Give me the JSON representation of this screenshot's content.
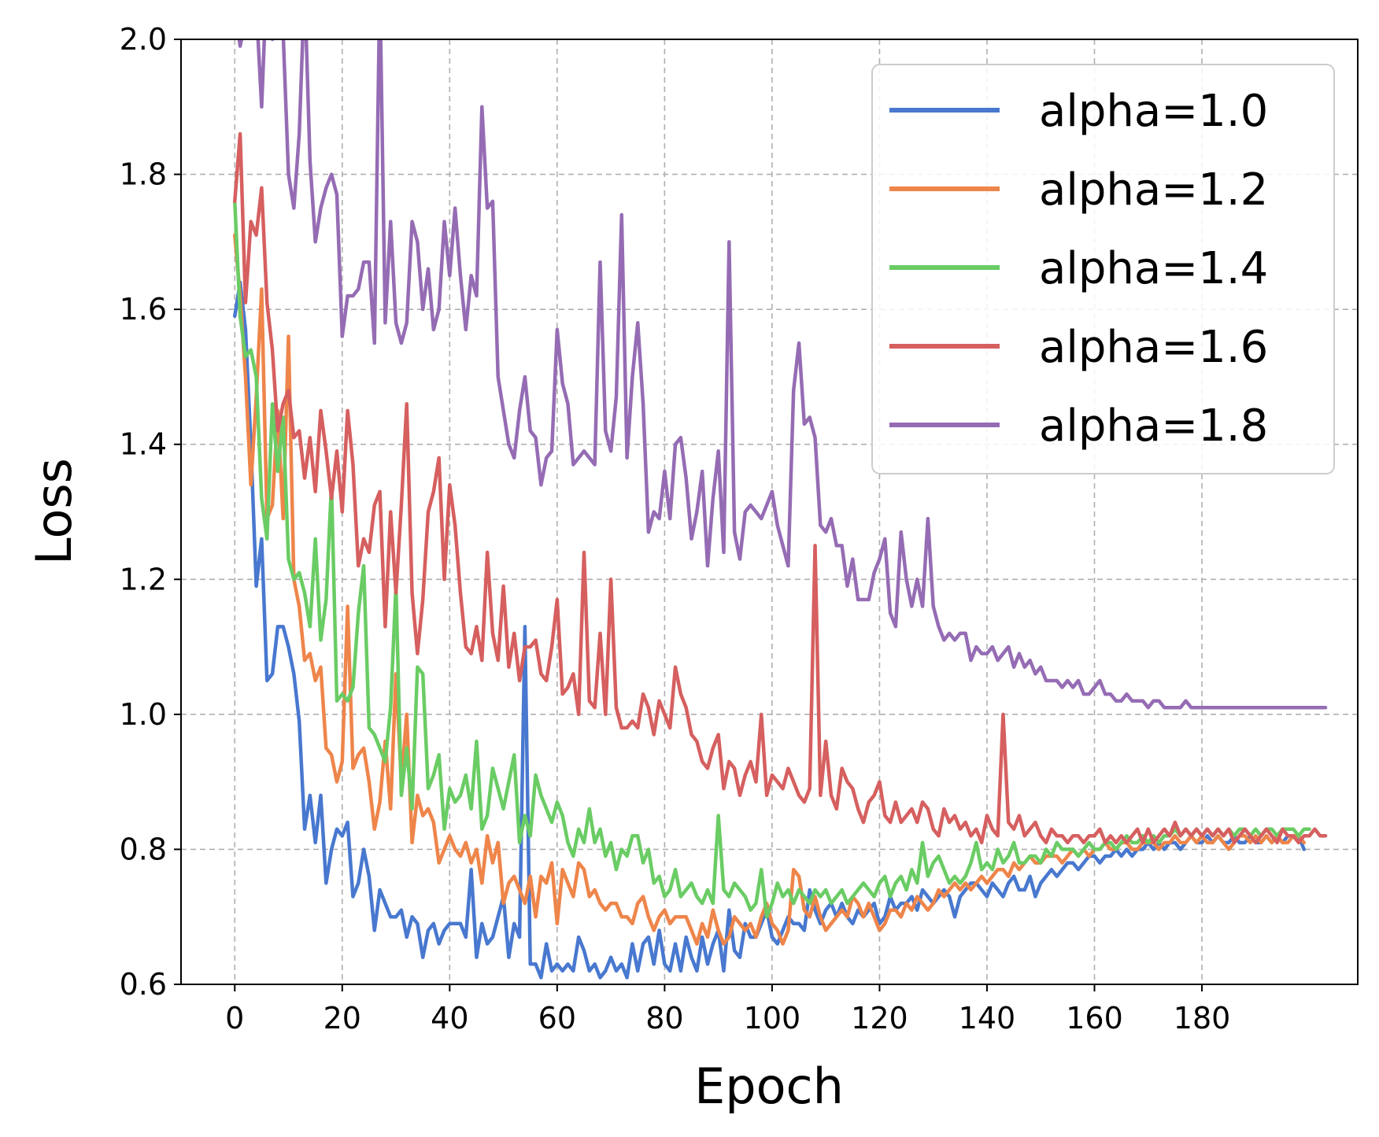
{
  "chart_data": {
    "type": "line",
    "xlabel": "Epoch",
    "ylabel": "Loss",
    "xlim": [
      -10,
      209
    ],
    "ylim": [
      0.6,
      2.0
    ],
    "x_ticks": [
      0,
      20,
      40,
      60,
      80,
      100,
      120,
      140,
      160,
      180
    ],
    "y_ticks": [
      0.6,
      0.8,
      1.0,
      1.2,
      1.4,
      1.6,
      1.8,
      2.0
    ],
    "x_tick_labels": [
      "0",
      "20",
      "40",
      "60",
      "80",
      "100",
      "120",
      "140",
      "160",
      "180"
    ],
    "y_tick_labels": [
      "0.6",
      "0.8",
      "1.0",
      "1.2",
      "1.4",
      "1.6",
      "1.8",
      "2.0"
    ],
    "grid": true,
    "legend_position": "top-right",
    "x_start": 0,
    "x_step": 1,
    "series": [
      {
        "name": "alpha=1.0",
        "color": "#4878cf",
        "values": [
          1.59,
          1.64,
          1.57,
          1.4,
          1.19,
          1.26,
          1.05,
          1.06,
          1.13,
          1.13,
          1.1,
          1.06,
          0.99,
          0.83,
          0.88,
          0.81,
          0.88,
          0.75,
          0.8,
          0.83,
          0.82,
          0.84,
          0.73,
          0.75,
          0.8,
          0.76,
          0.68,
          0.74,
          0.72,
          0.7,
          0.7,
          0.71,
          0.67,
          0.7,
          0.69,
          0.64,
          0.68,
          0.69,
          0.66,
          0.68,
          0.69,
          0.69,
          0.69,
          0.67,
          0.77,
          0.64,
          0.69,
          0.66,
          0.67,
          0.7,
          0.73,
          0.64,
          0.69,
          0.67,
          1.13,
          0.63,
          0.63,
          0.61,
          0.66,
          0.62,
          0.63,
          0.62,
          0.63,
          0.62,
          0.67,
          0.65,
          0.62,
          0.63,
          0.61,
          0.62,
          0.64,
          0.62,
          0.63,
          0.61,
          0.66,
          0.62,
          0.66,
          0.67,
          0.63,
          0.68,
          0.63,
          0.62,
          0.66,
          0.62,
          0.67,
          0.64,
          0.62,
          0.67,
          0.63,
          0.66,
          0.68,
          0.62,
          0.71,
          0.65,
          0.64,
          0.69,
          0.67,
          0.67,
          0.69,
          0.71,
          0.67,
          0.66,
          0.68,
          0.7,
          0.69,
          0.69,
          0.68,
          0.74,
          0.71,
          0.69,
          0.71,
          0.72,
          0.7,
          0.72,
          0.7,
          0.69,
          0.71,
          0.7,
          0.71,
          0.72,
          0.69,
          0.7,
          0.73,
          0.71,
          0.72,
          0.72,
          0.73,
          0.71,
          0.74,
          0.73,
          0.72,
          0.73,
          0.74,
          0.73,
          0.7,
          0.73,
          0.74,
          0.75,
          0.75,
          0.74,
          0.73,
          0.75,
          0.74,
          0.73,
          0.75,
          0.76,
          0.74,
          0.74,
          0.76,
          0.73,
          0.75,
          0.76,
          0.77,
          0.76,
          0.77,
          0.78,
          0.78,
          0.77,
          0.78,
          0.79,
          0.79,
          0.78,
          0.79,
          0.79,
          0.8,
          0.79,
          0.8,
          0.79,
          0.8,
          0.8,
          0.81,
          0.8,
          0.81,
          0.8,
          0.81,
          0.81,
          0.8,
          0.81,
          0.82,
          0.81,
          0.81,
          0.82,
          0.81,
          0.82,
          0.81,
          0.81,
          0.82,
          0.81,
          0.81,
          0.82,
          0.81,
          0.81,
          0.82,
          0.81,
          0.82,
          0.81,
          0.82,
          0.82,
          0.82,
          0.8
        ]
      },
      {
        "name": "alpha=1.2",
        "color": "#ee854a",
        "values": [
          1.71,
          1.62,
          1.5,
          1.34,
          1.47,
          1.63,
          1.29,
          1.31,
          1.45,
          1.29,
          1.56,
          1.2,
          1.16,
          1.08,
          1.09,
          1.05,
          1.07,
          0.95,
          0.94,
          0.9,
          0.93,
          1.16,
          0.92,
          0.94,
          0.95,
          0.9,
          0.83,
          0.87,
          0.96,
          0.86,
          1.06,
          0.9,
          1.0,
          0.81,
          0.88,
          0.85,
          0.86,
          0.84,
          0.78,
          0.8,
          0.82,
          0.8,
          0.79,
          0.81,
          0.78,
          0.8,
          0.75,
          0.82,
          0.78,
          0.81,
          0.72,
          0.75,
          0.76,
          0.74,
          0.72,
          0.76,
          0.7,
          0.76,
          0.75,
          0.78,
          0.69,
          0.77,
          0.75,
          0.73,
          0.78,
          0.77,
          0.73,
          0.74,
          0.72,
          0.71,
          0.72,
          0.72,
          0.7,
          0.7,
          0.69,
          0.72,
          0.73,
          0.7,
          0.68,
          0.7,
          0.71,
          0.69,
          0.7,
          0.7,
          0.7,
          0.68,
          0.66,
          0.69,
          0.67,
          0.71,
          0.68,
          0.66,
          0.67,
          0.7,
          0.69,
          0.68,
          0.69,
          0.67,
          0.7,
          0.72,
          0.69,
          0.68,
          0.66,
          0.68,
          0.77,
          0.76,
          0.71,
          0.7,
          0.73,
          0.7,
          0.68,
          0.69,
          0.7,
          0.71,
          0.7,
          0.73,
          0.72,
          0.7,
          0.72,
          0.7,
          0.68,
          0.69,
          0.71,
          0.71,
          0.7,
          0.72,
          0.71,
          0.73,
          0.72,
          0.71,
          0.72,
          0.74,
          0.73,
          0.74,
          0.75,
          0.74,
          0.75,
          0.74,
          0.75,
          0.76,
          0.75,
          0.76,
          0.77,
          0.77,
          0.76,
          0.78,
          0.77,
          0.78,
          0.79,
          0.78,
          0.78,
          0.79,
          0.79,
          0.79,
          0.78,
          0.79,
          0.8,
          0.79,
          0.8,
          0.79,
          0.8,
          0.8,
          0.81,
          0.8,
          0.8,
          0.81,
          0.81,
          0.8,
          0.8,
          0.81,
          0.81,
          0.81,
          0.8,
          0.81,
          0.81,
          0.82,
          0.81,
          0.81,
          0.82,
          0.81,
          0.82,
          0.81,
          0.81,
          0.82,
          0.81,
          0.8,
          0.81,
          0.82,
          0.82,
          0.81,
          0.82,
          0.81,
          0.82,
          0.81,
          0.82,
          0.81,
          0.81,
          0.82,
          0.82,
          0.81
        ]
      },
      {
        "name": "alpha=1.4",
        "color": "#6acc64",
        "values": [
          1.76,
          1.59,
          1.53,
          1.54,
          1.5,
          1.32,
          1.26,
          1.46,
          1.36,
          1.44,
          1.23,
          1.2,
          1.21,
          1.18,
          1.13,
          1.26,
          1.11,
          1.17,
          1.34,
          1.02,
          1.03,
          1.02,
          1.04,
          1.15,
          1.22,
          0.98,
          0.97,
          0.95,
          0.93,
          1.01,
          1.19,
          0.88,
          0.95,
          0.86,
          1.07,
          1.06,
          0.89,
          0.91,
          0.94,
          0.83,
          0.89,
          0.87,
          0.88,
          0.91,
          0.86,
          0.96,
          0.83,
          0.85,
          0.92,
          0.89,
          0.86,
          0.9,
          0.94,
          0.81,
          0.85,
          0.82,
          0.91,
          0.88,
          0.86,
          0.84,
          0.87,
          0.85,
          0.81,
          0.79,
          0.83,
          0.81,
          0.86,
          0.81,
          0.83,
          0.79,
          0.81,
          0.77,
          0.8,
          0.79,
          0.82,
          0.82,
          0.78,
          0.8,
          0.75,
          0.76,
          0.73,
          0.74,
          0.77,
          0.73,
          0.74,
          0.75,
          0.73,
          0.72,
          0.74,
          0.72,
          0.85,
          0.74,
          0.73,
          0.75,
          0.74,
          0.73,
          0.71,
          0.72,
          0.77,
          0.7,
          0.72,
          0.75,
          0.73,
          0.74,
          0.72,
          0.74,
          0.73,
          0.72,
          0.74,
          0.73,
          0.74,
          0.72,
          0.73,
          0.74,
          0.72,
          0.73,
          0.74,
          0.75,
          0.74,
          0.73,
          0.75,
          0.76,
          0.73,
          0.75,
          0.76,
          0.74,
          0.77,
          0.75,
          0.81,
          0.76,
          0.78,
          0.79,
          0.77,
          0.75,
          0.76,
          0.75,
          0.76,
          0.78,
          0.81,
          0.77,
          0.78,
          0.77,
          0.8,
          0.78,
          0.79,
          0.81,
          0.78,
          0.78,
          0.79,
          0.79,
          0.78,
          0.8,
          0.79,
          0.81,
          0.8,
          0.8,
          0.8,
          0.79,
          0.8,
          0.81,
          0.8,
          0.8,
          0.81,
          0.81,
          0.8,
          0.81,
          0.82,
          0.81,
          0.81,
          0.82,
          0.81,
          0.82,
          0.81,
          0.82,
          0.82,
          0.83,
          0.82,
          0.83,
          0.82,
          0.83,
          0.82,
          0.83,
          0.82,
          0.83,
          0.82,
          0.83,
          0.82,
          0.83,
          0.83,
          0.82,
          0.83,
          0.82,
          0.83,
          0.83,
          0.82,
          0.83,
          0.83,
          0.83,
          0.82,
          0.83,
          0.83
        ]
      },
      {
        "name": "alpha=1.6",
        "color": "#d65f5f",
        "values": [
          1.76,
          1.86,
          1.61,
          1.73,
          1.71,
          1.78,
          1.61,
          1.54,
          1.42,
          1.46,
          1.48,
          1.41,
          1.42,
          1.35,
          1.41,
          1.33,
          1.45,
          1.39,
          1.32,
          1.39,
          1.3,
          1.45,
          1.37,
          1.22,
          1.26,
          1.24,
          1.31,
          1.33,
          1.13,
          1.3,
          1.18,
          1.31,
          1.46,
          1.18,
          1.09,
          1.17,
          1.3,
          1.33,
          1.38,
          1.2,
          1.34,
          1.28,
          1.18,
          1.1,
          1.09,
          1.13,
          1.08,
          1.24,
          1.12,
          1.08,
          1.19,
          1.07,
          1.12,
          1.05,
          1.1,
          1.1,
          1.11,
          1.06,
          1.05,
          1.1,
          1.17,
          1.03,
          1.04,
          1.06,
          1.0,
          1.24,
          1.02,
          1.01,
          1.12,
          1.0,
          1.2,
          1.01,
          0.98,
          0.98,
          0.99,
          0.98,
          1.03,
          1.01,
          0.97,
          1.02,
          1.0,
          0.98,
          1.07,
          1.03,
          1.01,
          0.97,
          0.96,
          0.93,
          0.92,
          0.95,
          0.97,
          0.89,
          0.93,
          0.92,
          0.88,
          0.91,
          0.93,
          0.9,
          1.0,
          0.88,
          0.91,
          0.9,
          0.89,
          0.92,
          0.9,
          0.88,
          0.87,
          0.89,
          1.25,
          0.88,
          0.96,
          0.88,
          0.86,
          0.92,
          0.9,
          0.89,
          0.86,
          0.84,
          0.87,
          0.88,
          0.9,
          0.85,
          0.84,
          0.87,
          0.84,
          0.85,
          0.86,
          0.84,
          0.87,
          0.86,
          0.83,
          0.82,
          0.86,
          0.84,
          0.85,
          0.83,
          0.84,
          0.82,
          0.83,
          0.81,
          0.85,
          0.83,
          0.82,
          1.0,
          0.84,
          0.83,
          0.85,
          0.82,
          0.83,
          0.84,
          0.82,
          0.81,
          0.83,
          0.82,
          0.82,
          0.81,
          0.82,
          0.82,
          0.81,
          0.82,
          0.82,
          0.83,
          0.81,
          0.82,
          0.81,
          0.82,
          0.81,
          0.82,
          0.83,
          0.81,
          0.83,
          0.81,
          0.82,
          0.83,
          0.82,
          0.84,
          0.82,
          0.83,
          0.82,
          0.83,
          0.82,
          0.83,
          0.82,
          0.83,
          0.82,
          0.83,
          0.81,
          0.82,
          0.83,
          0.82,
          0.81,
          0.82,
          0.83,
          0.82,
          0.81,
          0.83,
          0.82,
          0.82,
          0.81,
          0.82,
          0.82,
          0.83,
          0.82,
          0.82
        ]
      },
      {
        "name": "alpha=1.8",
        "color": "#956cb4",
        "values": [
          2.05,
          1.99,
          2.03,
          2.03,
          2.05,
          1.9,
          2.1,
          2.0,
          2.18,
          2.01,
          1.8,
          1.75,
          1.86,
          2.08,
          1.82,
          1.7,
          1.75,
          1.78,
          1.8,
          1.77,
          1.56,
          1.62,
          1.62,
          1.63,
          1.67,
          1.67,
          1.55,
          2.08,
          1.58,
          1.73,
          1.58,
          1.55,
          1.58,
          1.73,
          1.7,
          1.6,
          1.66,
          1.57,
          1.6,
          1.73,
          1.65,
          1.75,
          1.65,
          1.57,
          1.65,
          1.62,
          1.9,
          1.75,
          1.76,
          1.5,
          1.45,
          1.4,
          1.38,
          1.45,
          1.5,
          1.42,
          1.41,
          1.34,
          1.38,
          1.39,
          1.57,
          1.49,
          1.46,
          1.37,
          1.38,
          1.39,
          1.38,
          1.37,
          1.67,
          1.42,
          1.39,
          1.47,
          1.74,
          1.38,
          1.5,
          1.58,
          1.46,
          1.27,
          1.3,
          1.29,
          1.36,
          1.29,
          1.4,
          1.41,
          1.35,
          1.26,
          1.3,
          1.36,
          1.22,
          1.32,
          1.39,
          1.24,
          1.7,
          1.27,
          1.23,
          1.3,
          1.31,
          1.3,
          1.29,
          1.31,
          1.33,
          1.28,
          1.25,
          1.22,
          1.48,
          1.55,
          1.43,
          1.44,
          1.41,
          1.28,
          1.27,
          1.29,
          1.25,
          1.25,
          1.19,
          1.23,
          1.17,
          1.17,
          1.17,
          1.21,
          1.23,
          1.26,
          1.15,
          1.13,
          1.27,
          1.2,
          1.16,
          1.2,
          1.16,
          1.29,
          1.16,
          1.13,
          1.11,
          1.12,
          1.11,
          1.12,
          1.12,
          1.08,
          1.1,
          1.09,
          1.09,
          1.1,
          1.08,
          1.09,
          1.1,
          1.07,
          1.09,
          1.07,
          1.08,
          1.06,
          1.07,
          1.05,
          1.05,
          1.05,
          1.04,
          1.05,
          1.04,
          1.05,
          1.03,
          1.03,
          1.04,
          1.05,
          1.03,
          1.03,
          1.02,
          1.02,
          1.03,
          1.02,
          1.02,
          1.02,
          1.01,
          1.02,
          1.02,
          1.01,
          1.01,
          1.01,
          1.01,
          1.02,
          1.01,
          1.01,
          1.01,
          1.01,
          1.01,
          1.01,
          1.01,
          1.01,
          1.01,
          1.01,
          1.01,
          1.01,
          1.01,
          1.01,
          1.01,
          1.01,
          1.01,
          1.01,
          1.01,
          1.01,
          1.01,
          1.01,
          1.01,
          1.01,
          1.01,
          1.01
        ]
      }
    ]
  }
}
